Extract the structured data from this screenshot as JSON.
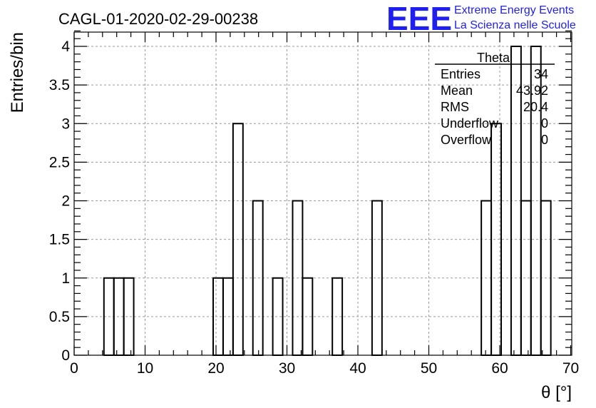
{
  "chart_data": {
    "type": "bar",
    "title": "CAGL-01-2020-02-29-00238",
    "xlabel": "θ [°]",
    "ylabel": "Entries/bin",
    "xlim": [
      0,
      70
    ],
    "ylim": [
      0,
      4.2
    ],
    "grid": true,
    "histogram_bins": [
      {
        "x0": 4.2,
        "x1": 5.6,
        "value": 1
      },
      {
        "x0": 5.6,
        "x1": 7.0,
        "value": 1
      },
      {
        "x0": 7.0,
        "x1": 8.4,
        "value": 1
      },
      {
        "x0": 19.6,
        "x1": 21.0,
        "value": 1
      },
      {
        "x0": 21.0,
        "x1": 22.4,
        "value": 1
      },
      {
        "x0": 22.4,
        "x1": 23.8,
        "value": 3
      },
      {
        "x0": 25.2,
        "x1": 26.6,
        "value": 2
      },
      {
        "x0": 28.0,
        "x1": 29.4,
        "value": 1
      },
      {
        "x0": 30.8,
        "x1": 32.2,
        "value": 2
      },
      {
        "x0": 32.2,
        "x1": 33.6,
        "value": 1
      },
      {
        "x0": 36.4,
        "x1": 37.8,
        "value": 1
      },
      {
        "x0": 42.0,
        "x1": 43.4,
        "value": 2
      },
      {
        "x0": 57.4,
        "x1": 58.8,
        "value": 2
      },
      {
        "x0": 58.8,
        "x1": 60.2,
        "value": 3
      },
      {
        "x0": 61.6,
        "x1": 63.0,
        "value": 4
      },
      {
        "x0": 63.0,
        "x1": 64.4,
        "value": 2
      },
      {
        "x0": 64.4,
        "x1": 65.8,
        "value": 4
      },
      {
        "x0": 65.8,
        "x1": 67.2,
        "value": 2
      }
    ],
    "x_ticks": [
      "0",
      "10",
      "20",
      "30",
      "40",
      "50",
      "60",
      "70"
    ],
    "x_tick_values": [
      0,
      10,
      20,
      30,
      40,
      50,
      60,
      70
    ],
    "y_ticks": [
      "0",
      "0.5",
      "1",
      "1.5",
      "2",
      "2.5",
      "3",
      "3.5",
      "4"
    ],
    "y_tick_values": [
      0,
      0.5,
      1,
      1.5,
      2,
      2.5,
      3,
      3.5,
      4
    ],
    "stats": {
      "name": "Theta",
      "rows": [
        {
          "label": "Entries",
          "value": "34"
        },
        {
          "label": "Mean",
          "value": "43.92"
        },
        {
          "label": "RMS",
          "value": "20.4"
        },
        {
          "label": "Underflow",
          "value": "0"
        },
        {
          "label": "Overflow",
          "value": "0"
        }
      ]
    },
    "logo": {
      "mark": "EEE",
      "line1": "Extreme Energy Events",
      "line2": "La Scienza nelle Scuole",
      "color": "#1f1fef"
    },
    "line_color": "#000000",
    "grid_color": "#9a9a9a"
  }
}
